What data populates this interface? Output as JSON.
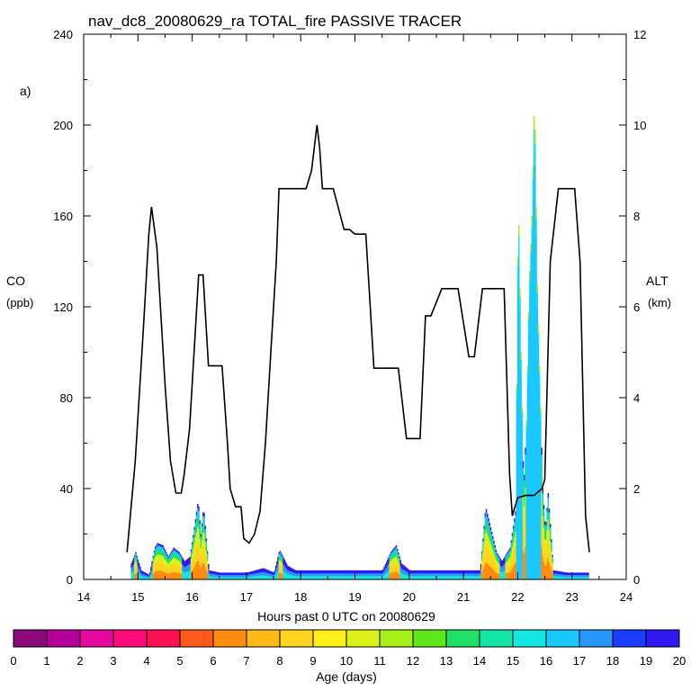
{
  "chart_data": {
    "type": "line",
    "title": "nav_dc8_20080629_ra TOTAL_fire PASSIVE TRACER",
    "panel_label": "a)",
    "xlabel": "Hours past 0 UTC on 20080629",
    "ylabel_left_line1": "CO",
    "ylabel_left_line2": "(ppb)",
    "ylabel_right_line1": "ALT",
    "ylabel_right_line2": "(km)",
    "xlim": [
      14,
      24
    ],
    "ylim_left": [
      0,
      240
    ],
    "ylim_right": [
      0,
      12
    ],
    "x_ticks": [
      "14",
      "15",
      "16",
      "17",
      "18",
      "19",
      "20",
      "21",
      "22",
      "23",
      "24"
    ],
    "y_ticks_left": [
      "0",
      "40",
      "80",
      "120",
      "160",
      "200",
      "240"
    ],
    "y_ticks_right": [
      "0",
      "2",
      "4",
      "6",
      "8",
      "10",
      "12"
    ],
    "altitude_series": {
      "name": "ALT",
      "color": "#000000",
      "x": [
        14.8,
        14.95,
        15.1,
        15.2,
        15.25,
        15.35,
        15.5,
        15.6,
        15.7,
        15.8,
        15.85,
        15.95,
        16.05,
        16.12,
        16.2,
        16.3,
        16.4,
        16.55,
        16.65,
        16.7,
        16.8,
        16.9,
        16.95,
        17.05,
        17.15,
        17.25,
        17.35,
        17.45,
        17.55,
        17.6,
        17.7,
        17.9,
        18.0,
        18.1,
        18.2,
        18.3,
        18.35,
        18.4,
        18.5,
        18.6,
        18.8,
        18.9,
        19.0,
        19.2,
        19.35,
        19.55,
        19.8,
        19.95,
        20.0,
        20.2,
        20.3,
        20.4,
        20.6,
        20.7,
        20.9,
        21.1,
        21.2,
        21.35,
        21.4,
        21.75,
        21.85,
        21.9,
        22.0,
        22.15,
        22.3,
        22.45,
        22.5,
        22.6,
        22.75,
        22.85,
        23.05,
        23.15,
        23.25,
        23.32
      ],
      "y": [
        0.6,
        2.6,
        5.5,
        7.6,
        8.2,
        7.3,
        4.3,
        2.6,
        1.9,
        1.9,
        2.3,
        3.3,
        5.3,
        6.7,
        6.7,
        4.7,
        4.7,
        4.7,
        3.0,
        2.0,
        1.6,
        1.6,
        0.9,
        0.8,
        1.0,
        1.5,
        3.0,
        5.0,
        7.0,
        8.6,
        8.6,
        8.6,
        8.6,
        8.6,
        9.0,
        10.0,
        9.5,
        8.6,
        8.6,
        8.6,
        7.7,
        7.7,
        7.6,
        7.6,
        4.65,
        4.65,
        4.65,
        3.1,
        3.1,
        3.1,
        5.8,
        5.8,
        6.4,
        6.4,
        6.4,
        4.9,
        4.9,
        6.4,
        6.4,
        6.4,
        2.3,
        1.4,
        1.8,
        1.85,
        1.85,
        2.0,
        2.2,
        7.0,
        8.6,
        8.6,
        8.6,
        7.0,
        1.4,
        0.6
      ]
    },
    "co_series": {
      "name": "CO",
      "x": [
        14.85,
        14.95,
        15.05,
        15.2,
        15.3,
        15.35,
        15.45,
        15.55,
        15.65,
        15.75,
        15.85,
        15.95,
        16.0,
        16.1,
        16.15,
        16.2,
        16.3,
        16.5,
        16.8,
        17.0,
        17.3,
        17.5,
        17.6,
        17.75,
        17.9,
        18.1,
        18.5,
        19.0,
        19.5,
        19.65,
        19.75,
        19.85,
        20.0,
        20.5,
        21.0,
        21.3,
        21.4,
        21.5,
        21.6,
        21.7,
        21.85,
        21.95,
        22.0,
        22.05,
        22.1,
        22.15,
        22.2,
        22.25,
        22.3,
        22.35,
        22.45,
        22.5,
        22.55,
        22.65,
        22.9,
        23.1,
        23.3
      ],
      "y": [
        6,
        12,
        4,
        2,
        14,
        16,
        15,
        10,
        14,
        12,
        8,
        10,
        18,
        35,
        20,
        32,
        4,
        3,
        3,
        3,
        5,
        3,
        13,
        6,
        4,
        4,
        4,
        4,
        4,
        12,
        15,
        7,
        4,
        4,
        4,
        4,
        32,
        22,
        12,
        8,
        14,
        30,
        170,
        100,
        40,
        70,
        130,
        160,
        215,
        130,
        40,
        22,
        38,
        4,
        3,
        3,
        3
      ]
    },
    "colorbar": {
      "label": "Age (days)",
      "ticks": [
        "0",
        "1",
        "2",
        "3",
        "4",
        "5",
        "6",
        "7",
        "8",
        "9",
        "10",
        "11",
        "12",
        "13",
        "14",
        "15",
        "16",
        "17",
        "18",
        "19",
        "20"
      ],
      "colors": [
        "#8b0a7a",
        "#b40098",
        "#e4089c",
        "#ff0a78",
        "#ff1050",
        "#ff5a1a",
        "#ff8c10",
        "#ffb814",
        "#ffd41e",
        "#ffee18",
        "#ddf018",
        "#a6f018",
        "#5ee81a",
        "#20e068",
        "#12e6a6",
        "#14e6e0",
        "#18c8ff",
        "#2896ff",
        "#1a3cff",
        "#3018f0",
        "#7a1ef0"
      ]
    }
  }
}
